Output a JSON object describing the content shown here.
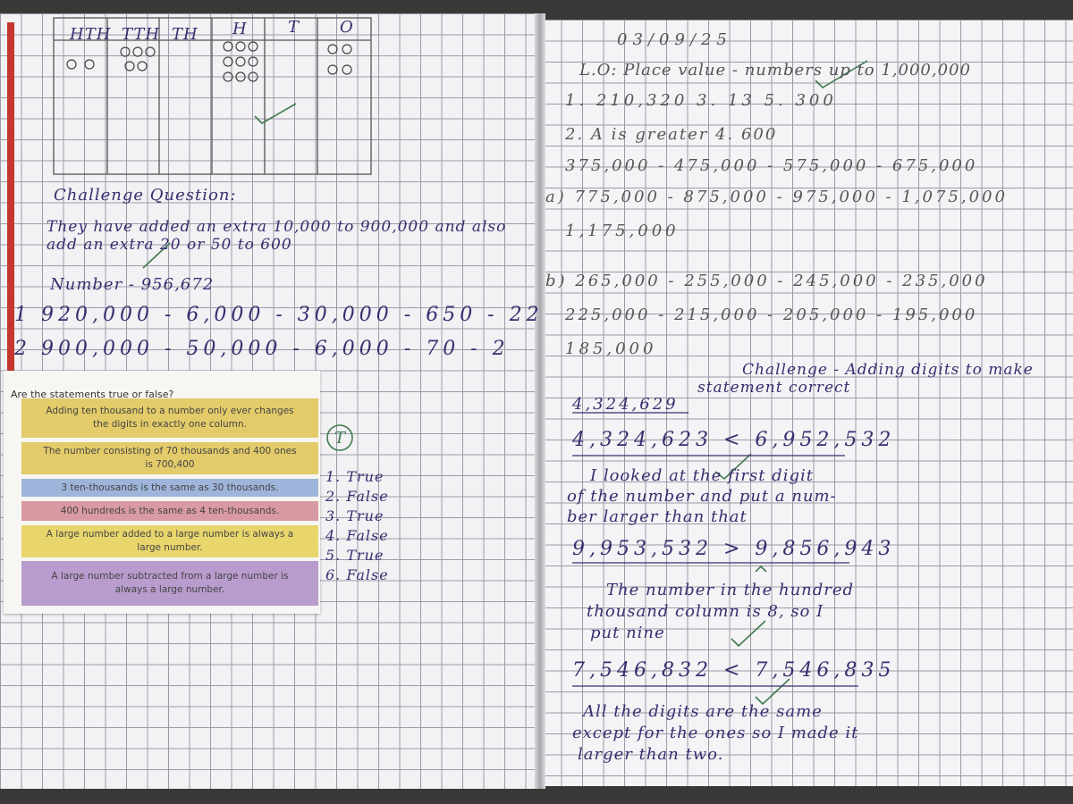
{
  "left_page": {
    "place_value_table": {
      "headers": [
        "HTH",
        "TTH",
        "TH",
        "H",
        "T",
        "O"
      ]
    },
    "challenge": {
      "title": "Challenge Question:",
      "lines": [
        "They have added an extra 10,000 to 900,000 and also",
        "add an extra 20 or 50 to 600"
      ],
      "number": "Number - 956,672",
      "answers": [
        {
          "number": "1",
          "text": "920,000 - 6,000 - 30,000 - 650 - 22"
        },
        {
          "number": "2",
          "text": "900,000 - 50,000 - 6,000 - 70 - 2"
        }
      ]
    },
    "worksheet": {
      "title": "Are the statements true or false?",
      "statements": [
        "Adding ten thousand to a number only ever changes the digits in exactly one column.",
        "The number consisting of 70 thousands and 400 ones is 700,400",
        "3 ten-thousands is the same as 30 thousands.",
        "400 hundreds is the same as 4 ten-thousands.",
        "A large number added to a large number is always a large number.",
        "A large number subtracted from a large number is always a large number."
      ]
    },
    "mark": "T",
    "answers": [
      "1. True",
      "2. False",
      "3. True",
      "4. False",
      "5. True",
      "6. False"
    ]
  },
  "right_page": {
    "date": "03/09/25",
    "objective": "L.O: Place value - numbers up to 1,000,000",
    "lines": [
      "1.  210,320   3.  13    5.  300",
      "2.  A is greater   4.  600",
      "375,000 - 475,000 - 575,000 - 675,000",
      "a) 775,000 - 875,000 - 975,000 - 1,075,000",
      "1,175,000",
      "b) 265,000 - 255,000 - 245,000 - 235,000",
      "225,000 - 215,000 - 205,000 - 195,000",
      "185,000"
    ],
    "challenge": {
      "title": [
        "Challenge - Adding digits to make",
        "statement correct"
      ],
      "lines": [
        "4,324,629",
        "4,324,623 < 6,952,532",
        "I looked at the first digit",
        "of the number and put a num-",
        "ber larger than that",
        "9,953,532 > 9,856,943",
        "The number in the hundred",
        "thousand column is 8, so I",
        "put nine",
        "7,546,832 < 7,546,835",
        "All the digits are the same",
        "except for the ones so I made it",
        "larger than two."
      ]
    }
  }
}
